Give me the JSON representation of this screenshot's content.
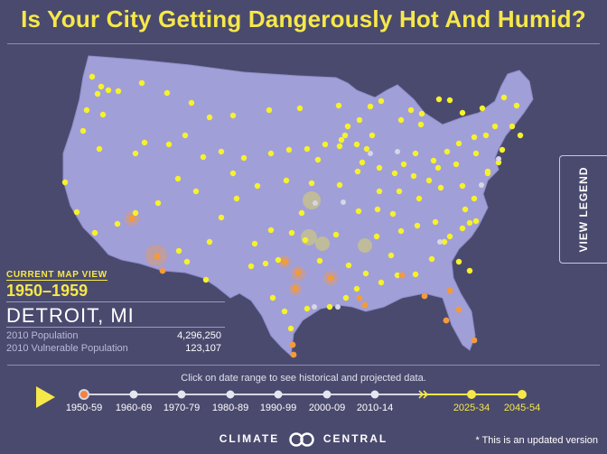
{
  "title": "Is Your City Getting Dangerously Hot And Humid?",
  "legend_button": "VIEW LEGEND",
  "current_view": {
    "label": "CURRENT MAP VIEW",
    "period": "1950–1959",
    "city": "DETROIT, MI",
    "stats": [
      {
        "label": "2010 Population",
        "value": "4,296,250"
      },
      {
        "label": "2010 Vulnerable Population",
        "value": "123,107"
      }
    ]
  },
  "instruction": "Click on date range to see historical and projected data.",
  "timeline": [
    {
      "label": "1950-59",
      "state": "selected"
    },
    {
      "label": "1960-69",
      "state": "historical"
    },
    {
      "label": "1970-79",
      "state": "historical"
    },
    {
      "label": "1980-89",
      "state": "historical"
    },
    {
      "label": "1990-99",
      "state": "historical"
    },
    {
      "label": "2000-09",
      "state": "historical"
    },
    {
      "label": "2010-14",
      "state": "historical"
    },
    {
      "label": "2025-34",
      "state": "projected"
    },
    {
      "label": "2045-54",
      "state": "projected"
    }
  ],
  "brand": {
    "left": "CLIMATE",
    "right": "CENTRAL"
  },
  "footnote": "* This is an updated version",
  "colors": {
    "background": "#4a4a6e",
    "land": "#a19fd8",
    "accent_yellow": "#f6e84a",
    "dot_yellow": "#f7f22a",
    "dot_orange": "#f59a3a",
    "dot_grey": "#d6d6e6",
    "selected_marker": "#f2833a"
  }
}
